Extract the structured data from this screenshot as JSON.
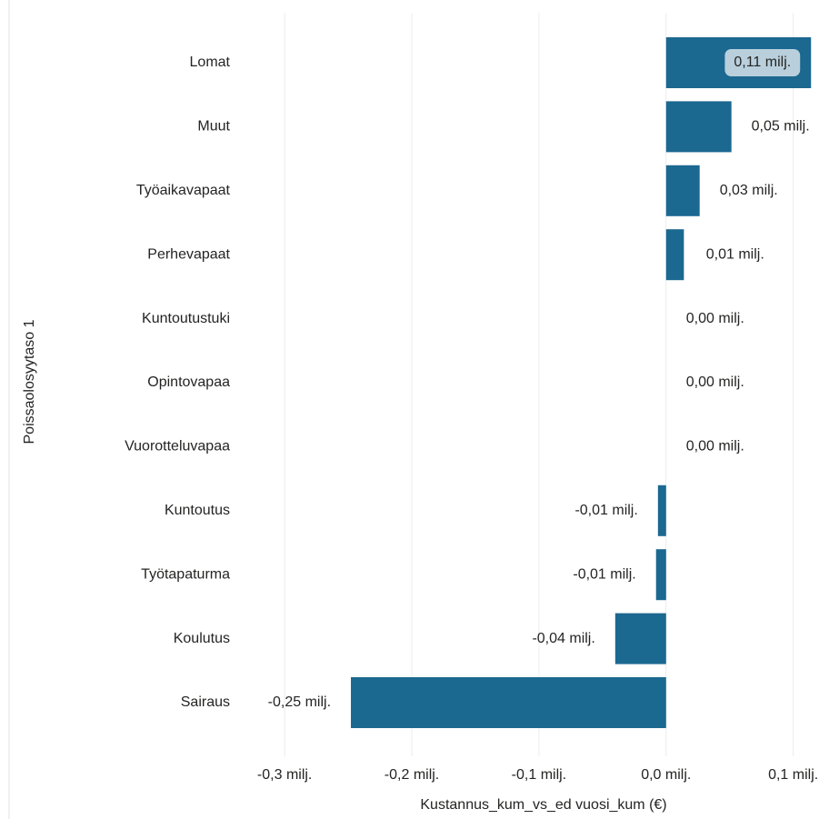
{
  "chart_data": {
    "type": "barh",
    "categories": [
      "Lomat",
      "Muut",
      "Työaikavapaat",
      "Perhevapaat",
      "Kuntoutustuki",
      "Opintovapaa",
      "Vuorotteluvapaa",
      "Kuntoutus",
      "Työtapaturma",
      "Koulutus",
      "Sairaus"
    ],
    "values": [
      114000,
      51400,
      26400,
      14000,
      0,
      0,
      0,
      -6400,
      -7900,
      -40000,
      -247900
    ],
    "value_labels": [
      "0,11 milj.",
      "0,05 milj.",
      "0,03 milj.",
      "0,01 milj.",
      "0,00 milj.",
      "0,00 milj.",
      "0,00 milj.",
      "-0,01 milj.",
      "-0,01 milj.",
      "-0,04 milj.",
      "-0,25 milj."
    ],
    "color": "#1b6890",
    "xlim": [
      -338000,
      136000
    ],
    "xticks": [
      {
        "value": -300000,
        "label": "-0,3 milj."
      },
      {
        "value": -200000,
        "label": "-0,2 milj."
      },
      {
        "value": -100000,
        "label": "-0,1 milj."
      },
      {
        "value": 0,
        "label": "0,0 milj."
      },
      {
        "value": 100000,
        "label": "0,1 milj."
      }
    ],
    "xlabel": "Kustannus_kum_vs_ed vuosi_kum (€)",
    "ylabel": "Poissaolosyytaso 1",
    "grid": true
  }
}
